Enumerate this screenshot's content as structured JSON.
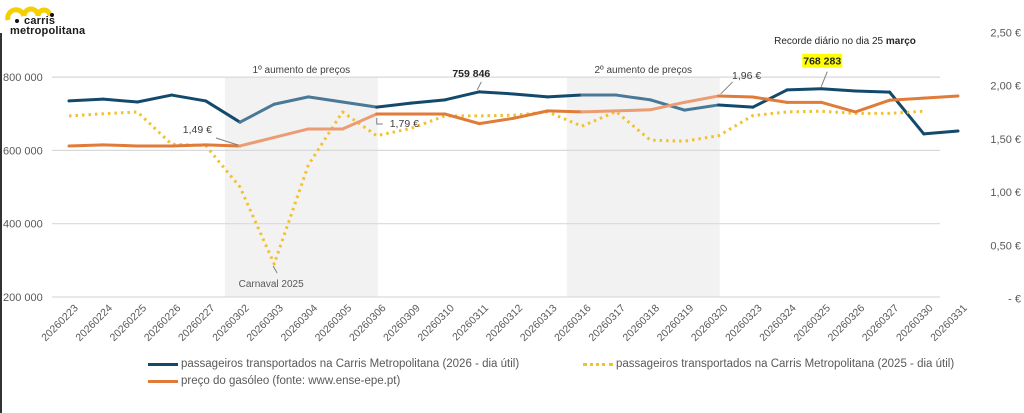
{
  "logo": {
    "line1": "carris",
    "line2": "metropolitana",
    "color": "#f5d000"
  },
  "chart_data": {
    "type": "line",
    "title": "",
    "xlabel": "",
    "ylabel": "",
    "y2label": "",
    "categories": [
      "20260223",
      "20260224",
      "20260225",
      "20260226",
      "20260227",
      "20260302",
      "20260303",
      "20260304",
      "20260305",
      "20260306",
      "20260309",
      "20260310",
      "20260311",
      "20260312",
      "20260313",
      "20260316",
      "20260317",
      "20260318",
      "20260319",
      "20260320",
      "20260323",
      "20260324",
      "20260325",
      "20260326",
      "20260327",
      "20260330",
      "20260331"
    ],
    "ylim": [
      200000,
      850000
    ],
    "y_ticks": [
      {
        "value": 200000,
        "label": "200 000"
      },
      {
        "value": 400000,
        "label": "400 000"
      },
      {
        "value": 600000,
        "label": "600 000"
      },
      {
        "value": 800000,
        "label": "800 000"
      }
    ],
    "y2lim": [
      0,
      2.5
    ],
    "y2_ticks": [
      {
        "value": 0,
        "label": "-   €"
      },
      {
        "value": 0.5,
        "label": "0,50 €"
      },
      {
        "value": 1.0,
        "label": "1,00 €"
      },
      {
        "value": 1.5,
        "label": "1,50 €"
      },
      {
        "value": 2.0,
        "label": "2,00 €"
      },
      {
        "value": 2.5,
        "label": "2,50 €"
      }
    ],
    "grid": true,
    "series": [
      {
        "name": "passageiros transportados na Carris Metropolitana (2026 - dia útil)",
        "axis": "left",
        "style": "solid",
        "color": "#134a6b",
        "color_in_band": "#4a7896",
        "values": [
          735000,
          740000,
          732000,
          751000,
          735000,
          677000,
          726000,
          746000,
          732000,
          718000,
          729000,
          738000,
          759846,
          754000,
          746000,
          751000,
          751000,
          738000,
          710000,
          724000,
          718000,
          765000,
          768283,
          762000,
          759000,
          645000,
          653000
        ]
      },
      {
        "name": "passageiros transportados na Carris Metropolitana (2025 - dia útil)",
        "axis": "left",
        "style": "dotted",
        "color": "#f2c12e",
        "values": [
          694000,
          700000,
          705000,
          617000,
          613000,
          500000,
          290000,
          560000,
          705000,
          640000,
          660000,
          694000,
          694000,
          696000,
          705000,
          666000,
          706000,
          628000,
          625000,
          640000,
          695000,
          705000,
          707000,
          701000,
          701000,
          707000,
          null
        ]
      },
      {
        "name": "preço do gasóleo (fonte: www.ense-epe.pt)",
        "axis": "right",
        "style": "solid",
        "color": "#e07b39",
        "color_in_band": "#eb9c72",
        "values": [
          1.49,
          1.5,
          1.49,
          1.49,
          1.5,
          1.49,
          1.57,
          1.65,
          1.65,
          1.79,
          1.79,
          1.79,
          1.7,
          1.75,
          1.82,
          1.81,
          1.82,
          1.83,
          1.9,
          1.96,
          1.95,
          1.9,
          1.9,
          1.81,
          1.92,
          1.94,
          1.96
        ]
      }
    ],
    "bands": [
      {
        "from": "20260302",
        "to": "20260306",
        "label": "1º aumento de preços"
      },
      {
        "from": "20260316",
        "to": "20260320",
        "label": "2º aumento de preços"
      }
    ],
    "annotations": [
      {
        "text": "1,49 €",
        "category": "20260302",
        "series": 2
      },
      {
        "text": "1,79 €",
        "category": "20260306",
        "series": 2
      },
      {
        "text": "1,96 €",
        "category": "20260320",
        "series": 2
      },
      {
        "text": "759 846",
        "category": "20260311",
        "series": 0,
        "bold": true
      },
      {
        "text": "768 283",
        "category": "20260325",
        "series": 0,
        "bold": true,
        "highlight": "#ffff00"
      },
      {
        "text": "Carnaval 2025",
        "category": "20260303",
        "series": 1
      },
      {
        "text_prefix": "Recorde diário no dia 25 ",
        "text_bold": "março"
      }
    ],
    "legend_position": "bottom"
  },
  "legend": [
    {
      "label": "passageiros transportados na Carris Metropolitana (2026 - dia útil)",
      "color": "#134a6b",
      "style": "solid"
    },
    {
      "label": "passageiros transportados na Carris Metropolitana (2025 - dia útil)",
      "color": "#f2c12e",
      "style": "dotted"
    },
    {
      "label": "preço do gasóleo (fonte: www.ense-epe.pt)",
      "color": "#e07b39",
      "style": "solid"
    }
  ]
}
